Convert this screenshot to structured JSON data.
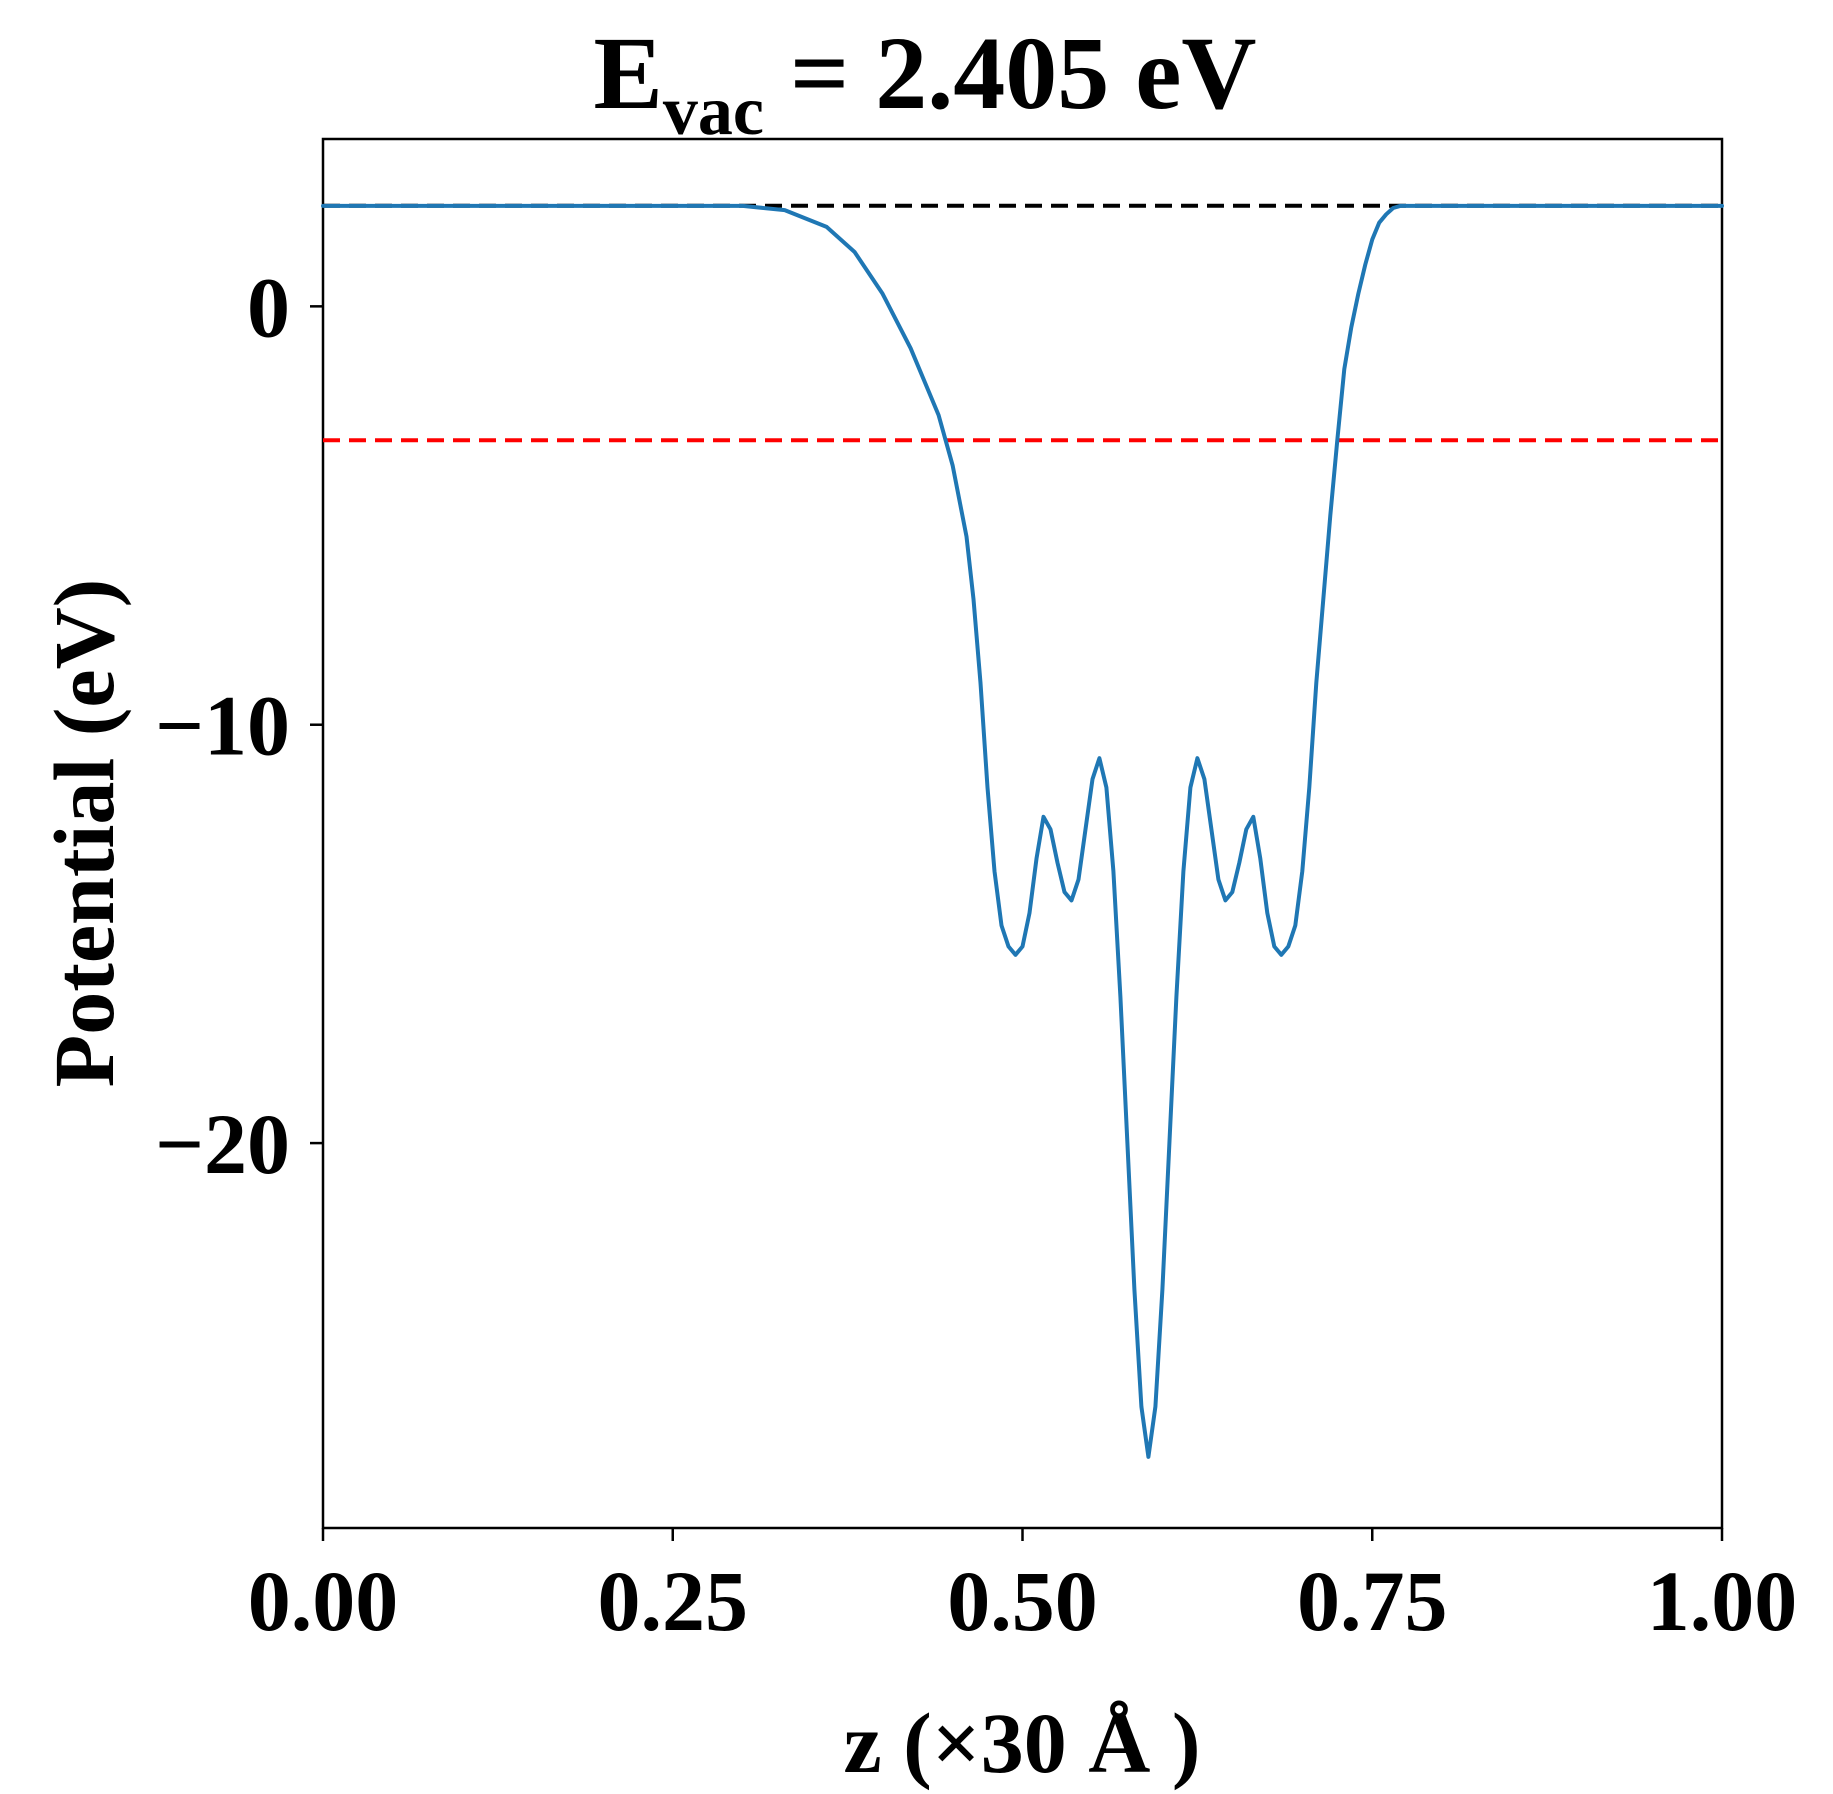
{
  "chart_data": {
    "type": "line",
    "title_main": "E",
    "title_sub": "vac",
    "title_rest": " = 2.405 eV",
    "xlabel": "z (×30 Å )",
    "ylabel": "Potential (eV)",
    "xlim": [
      0.0,
      1.0
    ],
    "ylim": [
      -29.2,
      4.0
    ],
    "xticks": [
      0.0,
      0.25,
      0.5,
      0.75,
      1.0
    ],
    "xtick_labels": [
      "0.00",
      "0.25",
      "0.50",
      "0.75",
      "1.00"
    ],
    "yticks": [
      0,
      -10,
      -20
    ],
    "ytick_labels": [
      "0",
      "−10",
      "−20"
    ],
    "reference_lines": [
      {
        "name": "vacuum-level",
        "y": 2.405,
        "color": "#000000",
        "style": "dashed"
      },
      {
        "name": "fermi-level",
        "y": -3.2,
        "color": "#ff0000",
        "style": "dashed"
      }
    ],
    "series": [
      {
        "name": "potential",
        "color": "#1f77b4",
        "x": [
          0.0,
          0.05,
          0.1,
          0.15,
          0.2,
          0.25,
          0.3,
          0.33,
          0.36,
          0.38,
          0.4,
          0.42,
          0.44,
          0.45,
          0.46,
          0.465,
          0.47,
          0.475,
          0.48,
          0.485,
          0.49,
          0.495,
          0.5,
          0.505,
          0.51,
          0.515,
          0.52,
          0.525,
          0.53,
          0.535,
          0.54,
          0.545,
          0.55,
          0.555,
          0.56,
          0.565,
          0.57,
          0.575,
          0.58,
          0.585,
          0.59,
          0.595,
          0.6,
          0.605,
          0.61,
          0.615,
          0.62,
          0.625,
          0.63,
          0.635,
          0.64,
          0.645,
          0.65,
          0.655,
          0.66,
          0.665,
          0.67,
          0.675,
          0.68,
          0.685,
          0.69,
          0.695,
          0.7,
          0.705,
          0.71,
          0.715,
          0.72,
          0.725,
          0.73,
          0.735,
          0.74,
          0.745,
          0.75,
          0.755,
          0.76,
          0.765,
          0.77,
          0.775,
          0.78,
          0.785,
          0.79,
          0.8,
          0.81,
          0.83,
          0.85,
          0.87,
          0.89,
          0.91,
          0.93,
          0.95,
          1.0
        ],
        "y": [
          2.4,
          2.4,
          2.4,
          2.4,
          2.4,
          2.4,
          2.4,
          2.3,
          1.9,
          1.3,
          0.3,
          -1.0,
          -2.6,
          -3.8,
          -5.5,
          -7.0,
          -9.0,
          -11.5,
          -13.5,
          -14.8,
          -15.3,
          -15.5,
          -15.3,
          -14.5,
          -13.2,
          -12.2,
          -12.5,
          -13.3,
          -14.0,
          -14.2,
          -13.7,
          -12.5,
          -11.3,
          -10.8,
          -11.5,
          -13.5,
          -16.5,
          -20.0,
          -23.5,
          -26.3,
          -27.5,
          -26.3,
          -23.5,
          -20.0,
          -16.5,
          -13.5,
          -11.5,
          -10.8,
          -11.3,
          -12.5,
          -13.7,
          -14.2,
          -14.0,
          -13.3,
          -12.5,
          -12.2,
          -13.2,
          -14.5,
          -15.3,
          -15.5,
          -15.3,
          -14.8,
          -13.5,
          -11.5,
          -9.0,
          -7.0,
          -5.0,
          -3.2,
          -1.5,
          -0.5,
          0.3,
          1.0,
          1.6,
          2.0,
          2.2,
          2.35,
          2.4,
          2.4,
          2.4,
          2.4,
          2.4,
          2.4,
          2.4,
          2.4,
          2.4,
          2.4,
          2.4,
          2.4,
          2.4,
          2.4,
          2.4
        ]
      }
    ]
  }
}
